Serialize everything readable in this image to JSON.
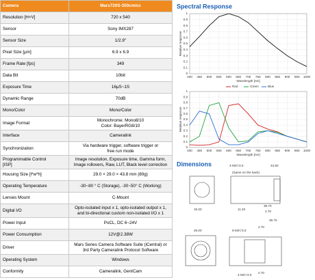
{
  "table": {
    "header": [
      "Camera",
      "Mars720S-350cm/cc"
    ],
    "rows": [
      [
        "Resolution [H×V]",
        "720 x 540"
      ],
      [
        "Sensor",
        "Sony IMX287"
      ],
      [
        "Sensor Size",
        "1/2.9\""
      ],
      [
        "Pixel Size [μm]",
        "6.9 x 6.9"
      ],
      [
        "Frame Rate [fps]",
        "349"
      ],
      [
        "Data Bit",
        "10bit"
      ],
      [
        "Exposure Time",
        "16μS~1S"
      ],
      [
        "Dynamic Range",
        "70dB"
      ],
      [
        "Mono/Color",
        "Mono/Color"
      ],
      [
        "Image Format",
        "Monochrome: Mono8/10\nColor:  BayerRG8/10"
      ],
      [
        "Interface",
        "Cameralink"
      ],
      [
        "Synchronization",
        "Via hardware trigger, software trigger or\nfree run mode"
      ],
      [
        "Programmable Control\n[ISP]",
        "Image resolution, Exposure time, Gamma form,\nImage rollovers, Raw, LUT, Black level correction"
      ],
      [
        "Housing Size [l*w*h]",
        "29.0 × 29.0 × 43.8 mm (80g)"
      ],
      [
        "Operating Temperature",
        "-30~80 ° C (Storage), -30~50° C (Working)"
      ],
      [
        "Lenses Mount",
        "C-Mount"
      ],
      [
        "Digital I/O",
        "Opto-isolated input x 1, opto-isolated output x 1,\nand bi-directional custom non-isolated I/O x 1"
      ],
      [
        "Power Input",
        "PoCL, DC 6~24V"
      ],
      [
        "Power Consumption",
        "12V@2.38W"
      ],
      [
        "Driver",
        "Mars Series Camera Software Suite (iCentral) or\n3rd Party Cameralink Protocol Software"
      ],
      [
        "Operating System",
        "Windows"
      ],
      [
        "Conformity",
        "Cameralink, GenICam"
      ]
    ]
  },
  "spectral_title": "Spectral Response",
  "chart_data": [
    {
      "type": "line",
      "x_label": "Wavelength [nm]",
      "y_label": "Relative response",
      "x": [
        400,
        450,
        500,
        550,
        600,
        650,
        700,
        750,
        800,
        850,
        900,
        950,
        1000
      ],
      "series": [
        {
          "color": "#111111",
          "values": [
            0.45,
            0.62,
            0.8,
            0.95,
            1.0,
            0.95,
            0.85,
            0.7,
            0.55,
            0.42,
            0.3,
            0.2,
            0.12
          ]
        }
      ],
      "xlim": [
        400,
        1000
      ],
      "xticks": [
        400,
        450,
        500,
        550,
        600,
        650,
        700,
        750,
        800,
        850,
        900,
        950,
        1000
      ],
      "ylim": [
        0,
        1
      ],
      "yticks": [
        0,
        0.1,
        0.2,
        0.3,
        0.4,
        0.5,
        0.6,
        0.7,
        0.8,
        0.9,
        1
      ],
      "grid": true
    },
    {
      "type": "line",
      "x_label": "Wavelength [nm]",
      "y_label": "Relative response",
      "x": [
        400,
        450,
        500,
        550,
        600,
        650,
        700,
        750,
        800,
        850,
        900,
        950,
        1000
      ],
      "series": [
        {
          "name": "Red",
          "color": "#d42020",
          "values": [
            0.05,
            0.04,
            0.05,
            0.1,
            0.75,
            0.78,
            0.6,
            0.4,
            0.33,
            0.28,
            0.2,
            0.15,
            0.1
          ]
        },
        {
          "name": "Green",
          "color": "#1fa23a",
          "values": [
            0.1,
            0.2,
            0.75,
            0.8,
            0.35,
            0.1,
            0.12,
            0.28,
            0.3,
            0.27,
            0.2,
            0.15,
            0.1
          ]
        },
        {
          "name": "Blue",
          "color": "#2e6fd6",
          "values": [
            0.4,
            0.65,
            0.6,
            0.15,
            0.05,
            0.05,
            0.1,
            0.25,
            0.3,
            0.25,
            0.2,
            0.15,
            0.1
          ]
        }
      ],
      "xlim": [
        400,
        1000
      ],
      "xticks": [
        400,
        450,
        500,
        550,
        600,
        650,
        700,
        750,
        800,
        850,
        900,
        950,
        1000
      ],
      "ylim": [
        0,
        1
      ],
      "yticks": [
        0,
        0.1,
        0.2,
        0.3,
        0.4,
        0.5,
        0.6,
        0.7,
        0.8,
        0.9,
        1
      ],
      "grid": true
    }
  ],
  "dimensions": {
    "title": "Dimensions",
    "labels": [
      "4-M3▽3.0",
      "43.80",
      "(Same on the back)",
      "19.20",
      "11.40",
      "38.70",
      "2.70",
      "36.70",
      "29.00",
      "5-M3▽3.0",
      "2.70",
      "4-M2▽3.0",
      "2.70"
    ]
  }
}
